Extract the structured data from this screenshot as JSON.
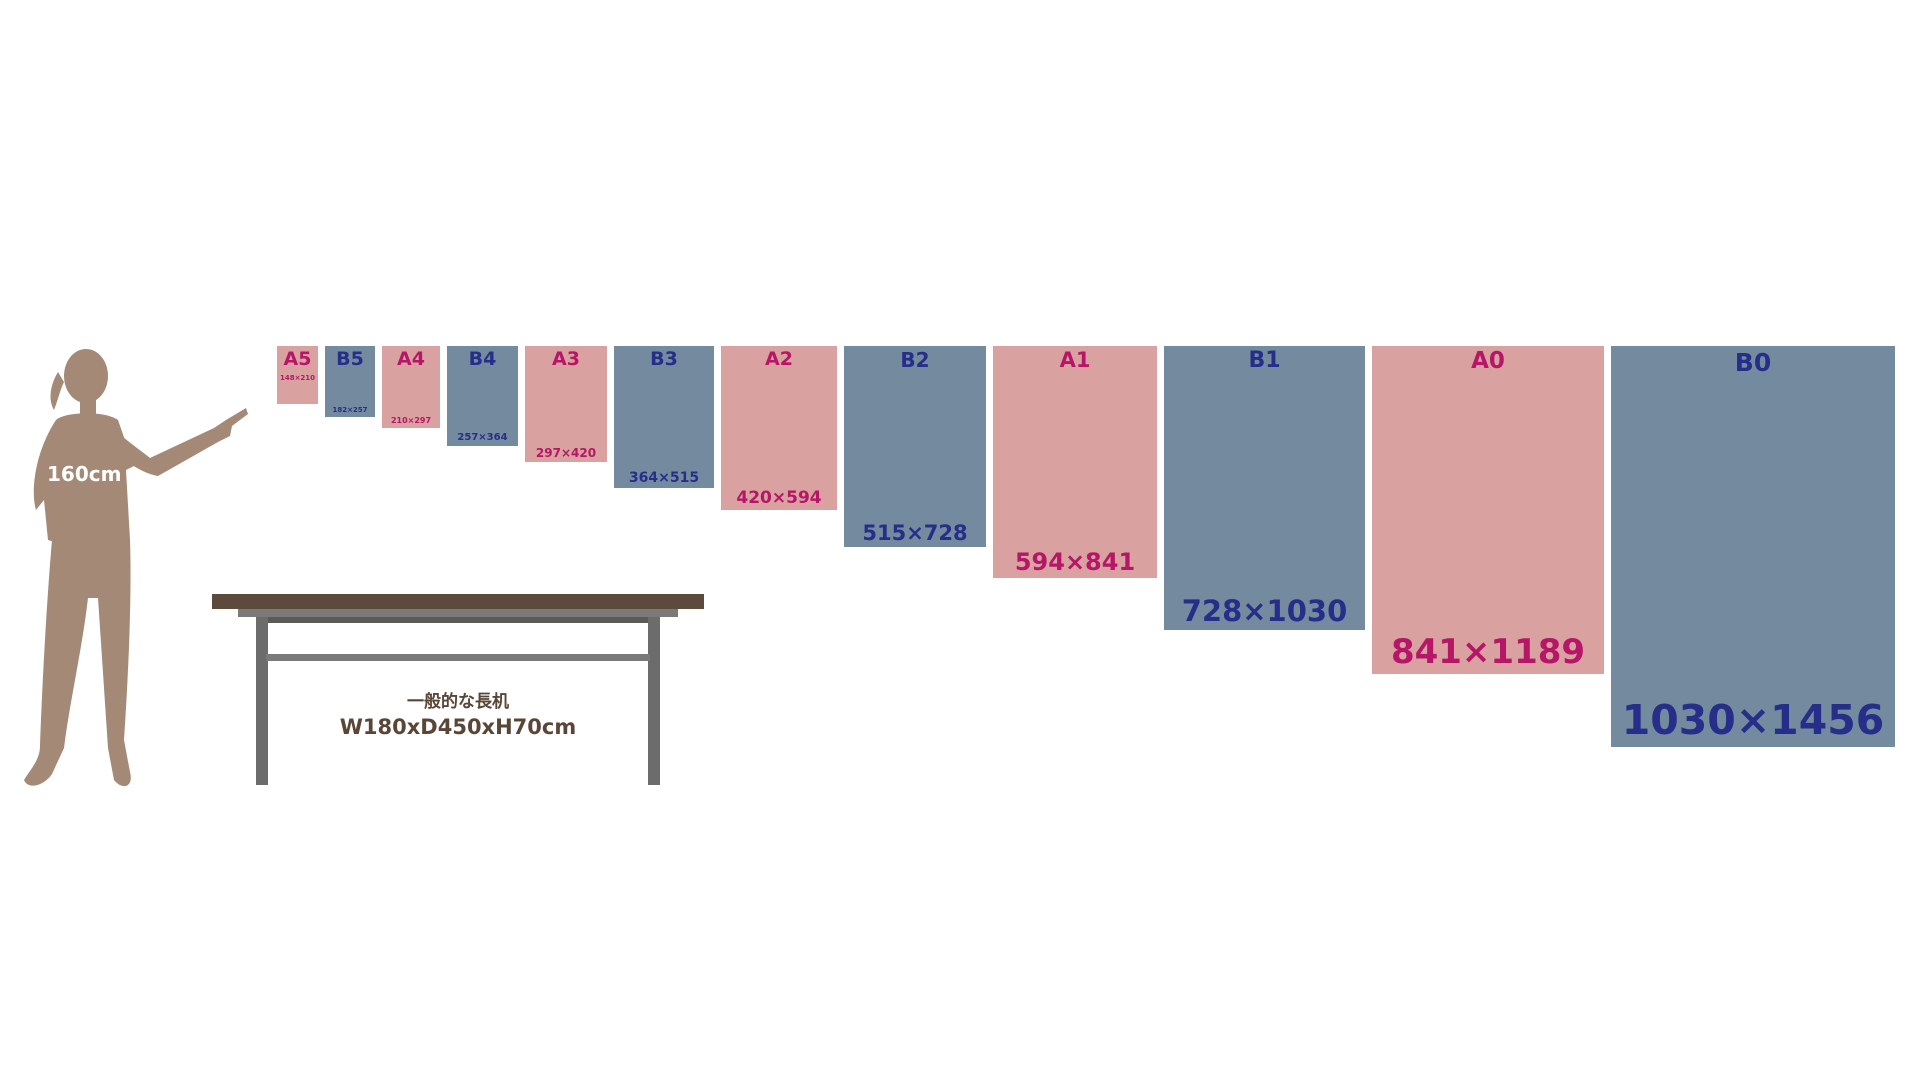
{
  "colors": {
    "a_series_fill": "#d9a19f",
    "a_series_text": "#b51667",
    "b_series_fill": "#748a9e",
    "b_series_text": "#262e8a",
    "figure": "#a48a76",
    "table_top": "#5c4a3c",
    "table_legs": "#6c6c6c"
  },
  "person": {
    "height_label": "160cm"
  },
  "table": {
    "caption_line1": "一般的な長机",
    "caption_line2": "W180xD450xH70cm"
  },
  "papers": [
    {
      "name": "A5",
      "series": "A",
      "width_mm": 148,
      "height_mm": 210,
      "dims": "148x210"
    },
    {
      "name": "B5",
      "series": "B",
      "width_mm": 182,
      "height_mm": 257,
      "dims": "182x257"
    },
    {
      "name": "A4",
      "series": "A",
      "width_mm": 210,
      "height_mm": 297,
      "dims": "210x297"
    },
    {
      "name": "B4",
      "series": "B",
      "width_mm": 257,
      "height_mm": 364,
      "dims": "257x364"
    },
    {
      "name": "A3",
      "series": "A",
      "width_mm": 297,
      "height_mm": 420,
      "dims": "297x420"
    },
    {
      "name": "B3",
      "series": "B",
      "width_mm": 364,
      "height_mm": 515,
      "dims": "364x515"
    },
    {
      "name": "A2",
      "series": "A",
      "width_mm": 420,
      "height_mm": 594,
      "dims": "420x594"
    },
    {
      "name": "B2",
      "series": "B",
      "width_mm": 515,
      "height_mm": 728,
      "dims": "515x728"
    },
    {
      "name": "A1",
      "series": "A",
      "width_mm": 594,
      "height_mm": 841,
      "dims": "594x841"
    },
    {
      "name": "B1",
      "series": "B",
      "width_mm": 728,
      "height_mm": 1030,
      "dims": "728x1030"
    },
    {
      "name": "A0",
      "series": "A",
      "width_mm": 841,
      "height_mm": 1189,
      "dims": "841x1189"
    },
    {
      "name": "B0",
      "series": "B",
      "width_mm": 1030,
      "height_mm": 1456,
      "dims": "1030x1456"
    }
  ]
}
